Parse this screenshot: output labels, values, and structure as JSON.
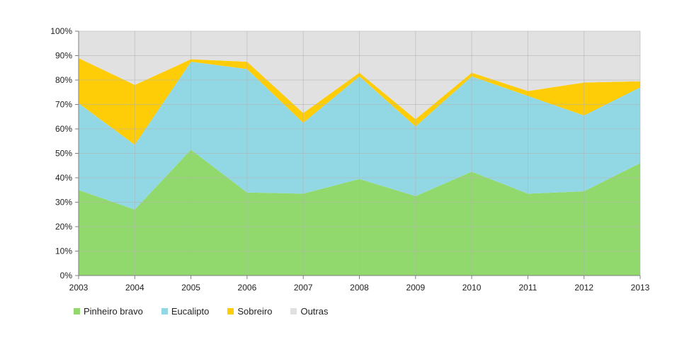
{
  "chart_data": {
    "type": "area",
    "stacked": "percent",
    "x": [
      "2003",
      "2004",
      "2005",
      "2006",
      "2007",
      "2008",
      "2009",
      "2010",
      "2011",
      "2012",
      "2013"
    ],
    "series": [
      {
        "name": "Pinheiro bravo",
        "color": "#92d96d",
        "values": [
          35,
          27,
          51.5,
          34,
          33.5,
          39.5,
          32.5,
          42.5,
          33.5,
          34.5,
          46
        ]
      },
      {
        "name": "Eucalipto",
        "color": "#92d8e4",
        "values": [
          35.5,
          26.5,
          36,
          50.5,
          29,
          42,
          28.5,
          39,
          40,
          31,
          31
        ]
      },
      {
        "name": "Sobreiro",
        "color": "#ffcc08",
        "values": [
          18.5,
          24.5,
          1,
          3,
          4,
          1.5,
          3,
          1.5,
          2,
          13.5,
          2.5
        ]
      },
      {
        "name": "Outras",
        "color": "#e1e1e1",
        "values": [
          11,
          22,
          11.5,
          12.5,
          33.5,
          17,
          36,
          17,
          24.5,
          21,
          20.5
        ]
      }
    ],
    "y_ticks": [
      "0%",
      "10%",
      "20%",
      "30%",
      "40%",
      "50%",
      "60%",
      "70%",
      "80%",
      "90%",
      "100%"
    ],
    "ylim": [
      0,
      100
    ],
    "grid": true,
    "legend_position": "bottom-left"
  }
}
